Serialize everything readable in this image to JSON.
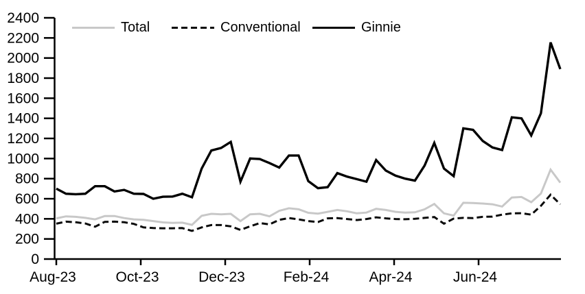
{
  "chart_data": {
    "type": "line",
    "title": "",
    "xlabel": "",
    "ylabel": "",
    "ylim": [
      0,
      2400
    ],
    "y_tick_step": 200,
    "y_ticks": [
      0,
      200,
      400,
      600,
      800,
      1000,
      1200,
      1400,
      1600,
      1800,
      2000,
      2200,
      2400
    ],
    "x_tick_labels": [
      "Aug-23",
      "Oct-23",
      "Dec-23",
      "Feb-24",
      "Apr-24",
      "Jun-24"
    ],
    "x_frequency": "weekly",
    "n_points": 53,
    "grid": false,
    "legend_position": "top",
    "series": [
      {
        "name": "Total",
        "color": "#c8c8c8",
        "style": "solid",
        "values": [
          405,
          425,
          420,
          410,
          395,
          428,
          428,
          408,
          395,
          390,
          378,
          365,
          360,
          362,
          340,
          430,
          450,
          445,
          450,
          378,
          445,
          450,
          425,
          480,
          505,
          495,
          460,
          452,
          470,
          488,
          475,
          455,
          462,
          500,
          488,
          470,
          462,
          465,
          495,
          548,
          455,
          432,
          560,
          558,
          552,
          545,
          522,
          612,
          618,
          565,
          652,
          890,
          760
        ]
      },
      {
        "name": "Conventional",
        "color": "#0a0a0a",
        "style": "dashed",
        "values": [
          352,
          372,
          366,
          354,
          322,
          370,
          372,
          366,
          350,
          315,
          308,
          306,
          306,
          308,
          280,
          315,
          338,
          338,
          325,
          290,
          326,
          358,
          345,
          390,
          408,
          395,
          378,
          368,
          405,
          408,
          398,
          388,
          398,
          415,
          405,
          398,
          396,
          400,
          410,
          418,
          352,
          402,
          410,
          408,
          420,
          422,
          442,
          455,
          456,
          442,
          530,
          640,
          545
        ]
      },
      {
        "name": "Ginnie",
        "color": "#000000",
        "style": "solid",
        "values": [
          700,
          650,
          645,
          650,
          725,
          725,
          672,
          688,
          650,
          648,
          600,
          620,
          622,
          650,
          615,
          900,
          1080,
          1105,
          1165,
          770,
          1000,
          995,
          955,
          910,
          1030,
          1030,
          775,
          705,
          715,
          855,
          820,
          795,
          770,
          985,
          880,
          830,
          800,
          780,
          930,
          1155,
          900,
          825,
          1300,
          1285,
          1175,
          1110,
          1085,
          1410,
          1400,
          1230,
          1450,
          2155,
          1890
        ]
      }
    ]
  }
}
